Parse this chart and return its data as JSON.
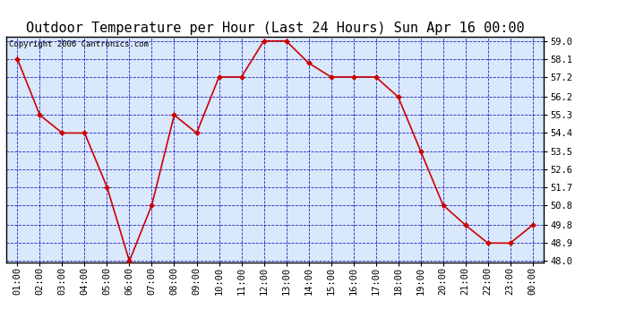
{
  "title": "Outdoor Temperature per Hour (Last 24 Hours) Sun Apr 16 00:00",
  "copyright": "Copyright 2006 Cantronics.com",
  "hours": [
    "01:00",
    "02:00",
    "03:00",
    "04:00",
    "05:00",
    "06:00",
    "07:00",
    "08:00",
    "09:00",
    "10:00",
    "11:00",
    "12:00",
    "13:00",
    "14:00",
    "15:00",
    "16:00",
    "17:00",
    "18:00",
    "19:00",
    "20:00",
    "21:00",
    "22:00",
    "23:00",
    "00:00"
  ],
  "temps": [
    58.1,
    55.3,
    54.4,
    54.4,
    51.7,
    48.0,
    50.8,
    55.3,
    54.4,
    57.2,
    57.2,
    59.0,
    59.0,
    57.9,
    57.2,
    57.2,
    57.2,
    56.2,
    53.5,
    50.8,
    49.8,
    48.9,
    48.9,
    49.8
  ],
  "ylim_min": 48.0,
  "ylim_max": 59.0,
  "yticks": [
    48.0,
    48.9,
    49.8,
    50.8,
    51.7,
    52.6,
    53.5,
    54.4,
    55.3,
    56.2,
    57.2,
    58.1,
    59.0
  ],
  "line_color": "#cc0000",
  "marker_color": "#cc0000",
  "fig_bg_color": "#ffffff",
  "plot_bg": "#d9e8fb",
  "grid_color": "#0000bb",
  "border_color": "#000000",
  "title_fontsize": 11,
  "tick_fontsize": 7.5,
  "copyright_fontsize": 6.5
}
